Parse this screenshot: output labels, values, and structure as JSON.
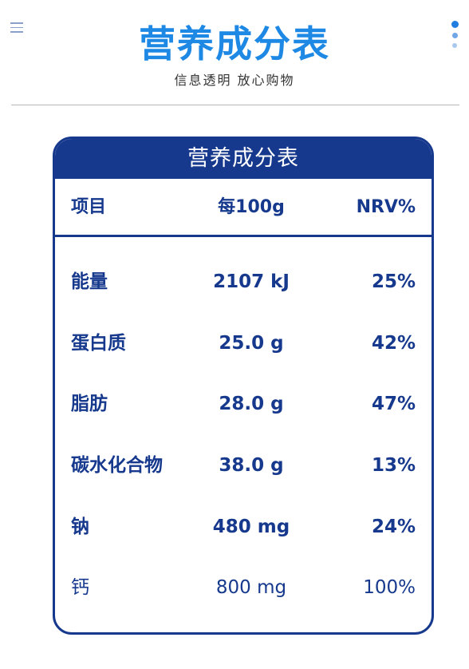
{
  "header": {
    "title": "营养成分表",
    "subtitle": "信息透明 放心购物",
    "menu_icon": "menu-icon",
    "more_icon": "vertical-dots-icon"
  },
  "table": {
    "title": "营养成分表",
    "columns": {
      "item": "项目",
      "per100g": "每100g",
      "nrv": "NRV%"
    },
    "rows": [
      {
        "name": "能量",
        "amount": "2107 kJ",
        "nrv": "25%"
      },
      {
        "name": "蛋白质",
        "amount": "25.0 g",
        "nrv": "42%"
      },
      {
        "name": "脂肪",
        "amount": "28.0 g",
        "nrv": "47%"
      },
      {
        "name": "碳水化合物",
        "amount": "38.0 g",
        "nrv": "13%"
      },
      {
        "name": "钠",
        "amount": "480 mg",
        "nrv": "24%"
      },
      {
        "name": "钙",
        "amount": "800 mg",
        "nrv": "100%"
      }
    ]
  },
  "colors": {
    "title_blue": "#1e88e5",
    "table_navy": "#16398d"
  }
}
